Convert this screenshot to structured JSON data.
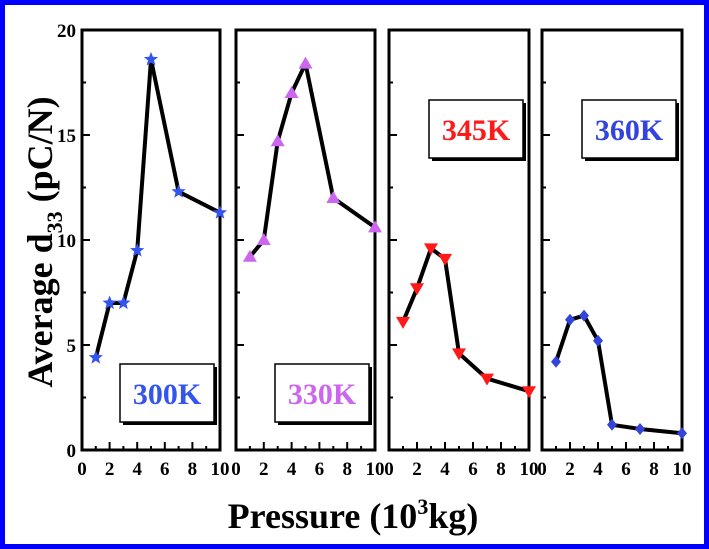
{
  "chart_data": {
    "type": "line",
    "ylabel": "Average d33 (pC/N)",
    "ylabel_parts": {
      "main": "Average d",
      "sub": "33",
      "unit": " (pC/N)"
    },
    "xlabel": "Pressure (10^3kg)",
    "xlabel_parts": {
      "main": "Pressure (10",
      "sup": "3",
      "unit": "kg)"
    },
    "ylim": [
      0,
      20
    ],
    "xlim": [
      0,
      10
    ],
    "yticks": [
      "0",
      "5",
      "10",
      "15",
      "20"
    ],
    "xticks": [
      "0",
      "2",
      "4",
      "6",
      "8",
      "10"
    ],
    "panels": [
      {
        "name": "300K",
        "label": "300K",
        "color": "#3355ee",
        "marker": "star",
        "label_pos": "bottom-right",
        "x": [
          1,
          2,
          3,
          4,
          5,
          7,
          10
        ],
        "y": [
          4.4,
          7.0,
          7.0,
          9.5,
          18.6,
          12.3,
          11.3
        ]
      },
      {
        "name": "330K",
        "label": "330K",
        "color": "#cc66ee",
        "marker": "triangle-up",
        "label_pos": "bottom-right",
        "x": [
          1,
          2,
          3,
          4,
          5,
          7,
          10
        ],
        "y": [
          9.2,
          10.0,
          14.7,
          17.0,
          18.4,
          12.0,
          10.6
        ]
      },
      {
        "name": "345K",
        "label": "345K",
        "color": "#ff1a1a",
        "marker": "triangle-down",
        "label_pos": "top-right",
        "x": [
          1,
          2,
          3,
          4,
          5,
          7,
          10
        ],
        "y": [
          6.1,
          7.7,
          9.6,
          9.1,
          4.6,
          3.4,
          2.8
        ]
      },
      {
        "name": "360K",
        "label": "360K",
        "color": "#3344dd",
        "marker": "diamond",
        "label_pos": "top-right",
        "x": [
          1,
          2,
          3,
          4,
          5,
          7,
          10
        ],
        "y": [
          4.2,
          6.2,
          6.4,
          5.2,
          1.2,
          1.0,
          0.8
        ]
      }
    ]
  }
}
